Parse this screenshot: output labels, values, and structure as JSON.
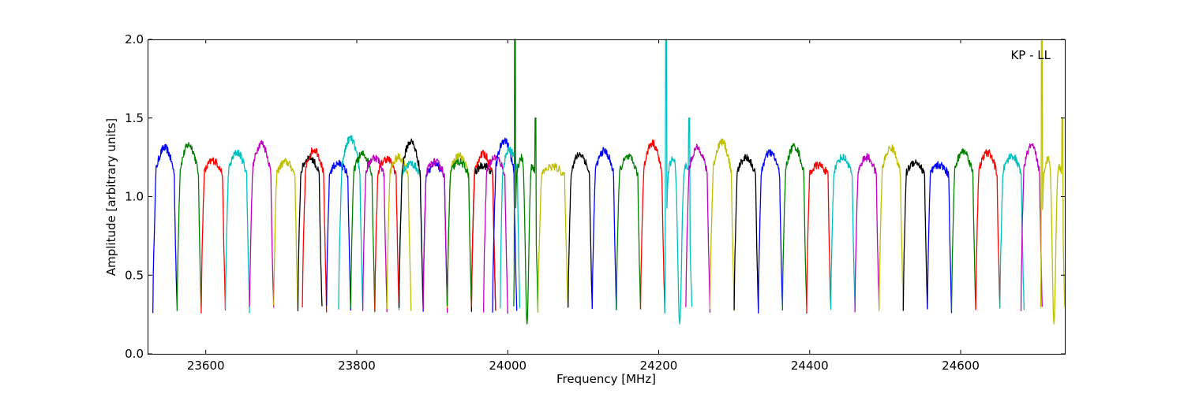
{
  "chart_data": {
    "type": "line",
    "title": "",
    "xlabel": "Frequency [MHz]",
    "ylabel": "Amplitude [arbitrary units]",
    "annotation": "KP - LL",
    "xlim": [
      23524,
      24738
    ],
    "ylim": [
      0.0,
      2.0
    ],
    "xticks": [
      23600,
      23800,
      24000,
      24200,
      24400,
      24600
    ],
    "xtick_labels": [
      "23600",
      "23800",
      "24000",
      "24200",
      "24400",
      "24600"
    ],
    "yticks": [
      0.0,
      0.5,
      1.0,
      1.5,
      2.0
    ],
    "ytick_labels": [
      "0.0",
      "0.5",
      "1.0",
      "1.5",
      "2.0"
    ],
    "grid": false,
    "legend": "none",
    "color_cycle": [
      "#0000ff",
      "#008000",
      "#ff0000",
      "#00bfbf",
      "#bf00bf",
      "#bfbf00",
      "#000000"
    ],
    "channel_width_mhz": 32,
    "bandpass": {
      "low_edge": 0.28,
      "plateau": 1.18,
      "peak": 1.32,
      "notes": "Each series is one ~32 MHz channel with a bandpass shape: rises from ~0.3 to ~1.2 with a peak near 1.3 and drops back to ~0.3."
    },
    "series": [
      {
        "color": "#0000ff",
        "x_start": 23530,
        "x_end": 23562,
        "peak": 1.31
      },
      {
        "color": "#008000",
        "x_start": 23562,
        "x_end": 23594,
        "peak": 1.33
      },
      {
        "color": "#ff0000",
        "x_start": 23594,
        "x_end": 23626,
        "peak": 1.23
      },
      {
        "color": "#00bfbf",
        "x_start": 23626,
        "x_end": 23658,
        "peak": 1.28
      },
      {
        "color": "#bf00bf",
        "x_start": 23658,
        "x_end": 23690,
        "peak": 1.34
      },
      {
        "color": "#bfbf00",
        "x_start": 23690,
        "x_end": 23722,
        "peak": 1.22
      },
      {
        "color": "#000000",
        "x_start": 23722,
        "x_end": 23754,
        "peak": 1.25
      },
      {
        "color": "#ff0000",
        "x_start": 23728,
        "x_end": 23760,
        "peak": 1.3
      },
      {
        "color": "#0000ff",
        "x_start": 23760,
        "x_end": 23792,
        "peak": 1.21
      },
      {
        "color": "#00bfbf",
        "x_start": 23776,
        "x_end": 23808,
        "peak": 1.37
      },
      {
        "color": "#008000",
        "x_start": 23792,
        "x_end": 23824,
        "peak": 1.27
      },
      {
        "color": "#bf00bf",
        "x_start": 23808,
        "x_end": 23840,
        "peak": 1.25
      },
      {
        "color": "#ff0000",
        "x_start": 23824,
        "x_end": 23856,
        "peak": 1.24
      },
      {
        "color": "#bfbf00",
        "x_start": 23840,
        "x_end": 23872,
        "peak": 1.25
      },
      {
        "color": "#00bfbf",
        "x_start": 23856,
        "x_end": 23888,
        "peak": 1.21
      },
      {
        "color": "#000000",
        "x_start": 23856,
        "x_end": 23888,
        "peak": 1.35
      },
      {
        "color": "#0000ff",
        "x_start": 23888,
        "x_end": 23920,
        "peak": 1.2
      },
      {
        "color": "#bf00bf",
        "x_start": 23888,
        "x_end": 23920,
        "peak": 1.22
      },
      {
        "color": "#bfbf00",
        "x_start": 23920,
        "x_end": 23952,
        "peak": 1.26
      },
      {
        "color": "#008000",
        "x_start": 23920,
        "x_end": 23952,
        "peak": 1.22
      },
      {
        "color": "#000000",
        "x_start": 23952,
        "x_end": 23984,
        "peak": 1.2
      },
      {
        "color": "#ff0000",
        "x_start": 23952,
        "x_end": 23984,
        "peak": 1.27
      },
      {
        "color": "#bf00bf",
        "x_start": 23968,
        "x_end": 24000,
        "peak": 1.25
      },
      {
        "color": "#0000ff",
        "x_start": 23980,
        "x_end": 24012,
        "peak": 1.36
      },
      {
        "color": "#00bfbf",
        "x_start": 23990,
        "x_end": 24016,
        "peak": 1.3
      },
      {
        "color": "#008000",
        "x_start": 24008,
        "x_end": 24040,
        "peak": 2.0,
        "absorption_min": 0.19
      },
      {
        "color": "#bfbf00",
        "x_start": 24040,
        "x_end": 24080,
        "peak": 1.19
      },
      {
        "color": "#000000",
        "x_start": 24080,
        "x_end": 24112,
        "peak": 1.27
      },
      {
        "color": "#0000ff",
        "x_start": 24112,
        "x_end": 24144,
        "peak": 1.29
      },
      {
        "color": "#008000",
        "x_start": 24144,
        "x_end": 24176,
        "peak": 1.25
      },
      {
        "color": "#ff0000",
        "x_start": 24176,
        "x_end": 24208,
        "peak": 1.34
      },
      {
        "color": "#00bfbf",
        "x_start": 24208,
        "x_end": 24244,
        "peak": 2.0,
        "absorption_min": 0.19
      },
      {
        "color": "#bf00bf",
        "x_start": 24236,
        "x_end": 24268,
        "peak": 1.31
      },
      {
        "color": "#bfbf00",
        "x_start": 24268,
        "x_end": 24300,
        "peak": 1.35
      },
      {
        "color": "#000000",
        "x_start": 24300,
        "x_end": 24332,
        "peak": 1.25
      },
      {
        "color": "#0000ff",
        "x_start": 24332,
        "x_end": 24364,
        "peak": 1.28
      },
      {
        "color": "#008000",
        "x_start": 24364,
        "x_end": 24396,
        "peak": 1.32
      },
      {
        "color": "#ff0000",
        "x_start": 24396,
        "x_end": 24428,
        "peak": 1.2
      },
      {
        "color": "#00bfbf",
        "x_start": 24428,
        "x_end": 24460,
        "peak": 1.25
      },
      {
        "color": "#bf00bf",
        "x_start": 24460,
        "x_end": 24492,
        "peak": 1.25
      },
      {
        "color": "#bfbf00",
        "x_start": 24492,
        "x_end": 24524,
        "peak": 1.31
      },
      {
        "color": "#000000",
        "x_start": 24524,
        "x_end": 24556,
        "peak": 1.22
      },
      {
        "color": "#0000ff",
        "x_start": 24556,
        "x_end": 24588,
        "peak": 1.2
      },
      {
        "color": "#008000",
        "x_start": 24588,
        "x_end": 24620,
        "peak": 1.29
      },
      {
        "color": "#ff0000",
        "x_start": 24620,
        "x_end": 24652,
        "peak": 1.28
      },
      {
        "color": "#00bfbf",
        "x_start": 24652,
        "x_end": 24684,
        "peak": 1.26
      },
      {
        "color": "#bf00bf",
        "x_start": 24680,
        "x_end": 24708,
        "peak": 1.32
      },
      {
        "color": "#bfbf00",
        "x_start": 24706,
        "x_end": 24738,
        "peak": 2.0,
        "absorption_min": 0.19
      }
    ]
  }
}
